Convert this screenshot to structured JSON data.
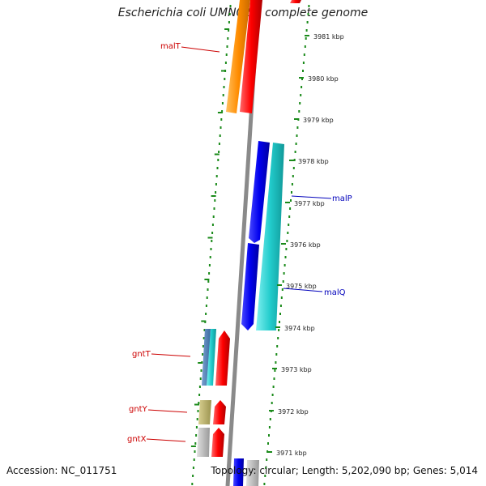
{
  "title": "Escherichia coli UMN026, complete genome",
  "footer": {
    "accession": "Accession: NC_011751",
    "summary": "Topology: circular; Length: 5,202,090 bp; Genes: 5,014"
  },
  "ticks": [
    "3981 kbp",
    "3980 kbp",
    "3979 kbp",
    "3978 kbp",
    "3977 kbp",
    "3976 kbp",
    "3975 kbp",
    "3974 kbp",
    "3973 kbp",
    "3972 kbp",
    "3971 kbp"
  ],
  "genes": [
    {
      "label": "malT",
      "color": "#cc0000"
    },
    {
      "label": "malP",
      "color": "#0000bb"
    },
    {
      "label": "malQ",
      "color": "#0000bb"
    },
    {
      "label": "gntT",
      "color": "#cc0000"
    },
    {
      "label": "gntY",
      "color": "#cc0000"
    },
    {
      "label": "gntX",
      "color": "#cc0000"
    }
  ],
  "colors": {
    "tick": "#1a8a1a",
    "backbone": "#888888",
    "forward": "#ff0000",
    "reverse": "#0000ee",
    "cyan": "#22cccc",
    "orange": "#ff8c00"
  }
}
